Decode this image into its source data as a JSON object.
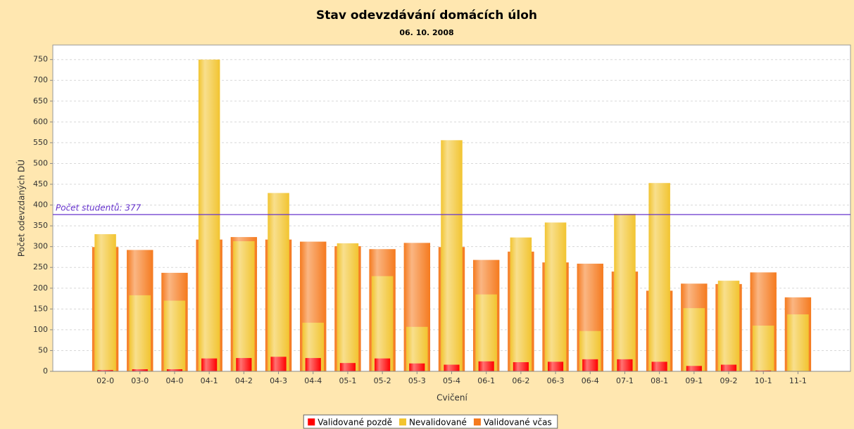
{
  "chart_data": {
    "type": "overlaid-bar",
    "title": "Stav odevzdávání domácích úloh",
    "subtitle": "06. 10. 2008",
    "x_label": "Cvičení",
    "y_label": "Počet odevzdaných DÚ",
    "categories": [
      "02-0",
      "03-0",
      "04-0",
      "04-1",
      "04-2",
      "04-3",
      "04-4",
      "05-1",
      "05-2",
      "05-3",
      "05-4",
      "06-1",
      "06-2",
      "06-3",
      "06-4",
      "07-1",
      "08-1",
      "09-1",
      "09-2",
      "10-1",
      "11-1"
    ],
    "series": [
      {
        "name": "Validované pozdě",
        "color": "#ff0000",
        "values": [
          3,
          5,
          5,
          31,
          32,
          35,
          32,
          20,
          31,
          19,
          16,
          24,
          22,
          23,
          29,
          29,
          23,
          13,
          16,
          2,
          0
        ]
      },
      {
        "name": "Nevalidované",
        "color": "#f2c430",
        "values": [
          330,
          183,
          170,
          750,
          313,
          429,
          117,
          308,
          229,
          107,
          556,
          185,
          322,
          358,
          97,
          379,
          453,
          152,
          218,
          110,
          137
        ]
      },
      {
        "name": "Validované včas",
        "color": "#f57a1e",
        "values": [
          299,
          292,
          237,
          317,
          323,
          317,
          312,
          301,
          294,
          309,
          299,
          268,
          288,
          262,
          259,
          240,
          194,
          211,
          210,
          238,
          178
        ]
      }
    ],
    "marker": {
      "label": "Počet studentů: 377",
      "value": 377,
      "color": "#6633cc"
    },
    "ylim": [
      0,
      785
    ],
    "yticks": [
      0,
      50,
      100,
      150,
      200,
      250,
      300,
      350,
      400,
      450,
      500,
      550,
      600,
      650,
      700,
      750
    ],
    "grid": true,
    "legend": "bottom"
  }
}
